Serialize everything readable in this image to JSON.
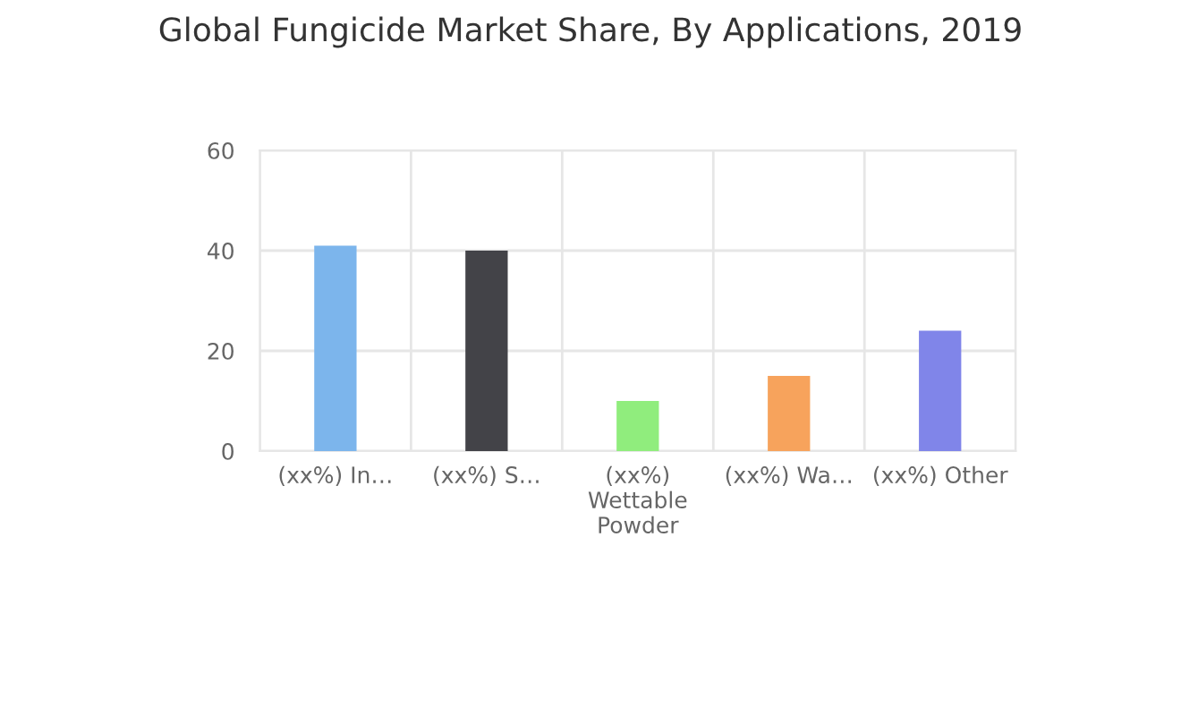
{
  "chart_data": {
    "type": "bar",
    "title": "Global Fungicide Market Share, By Applications, 2019",
    "categories": [
      "(xx%) In…",
      "(xx%) S…",
      "(xx%)\nWettable\nPowder",
      "(xx%) Wa…",
      "(xx%) Other"
    ],
    "values": [
      41,
      40,
      10,
      15,
      24
    ],
    "colors": [
      "#7cb5ec",
      "#434348",
      "#90ed7d",
      "#f7a35c",
      "#8085e9"
    ],
    "ylim": [
      0,
      60
    ],
    "yticks": [
      0,
      20,
      40,
      60
    ],
    "grid": true,
    "legend": false
  }
}
